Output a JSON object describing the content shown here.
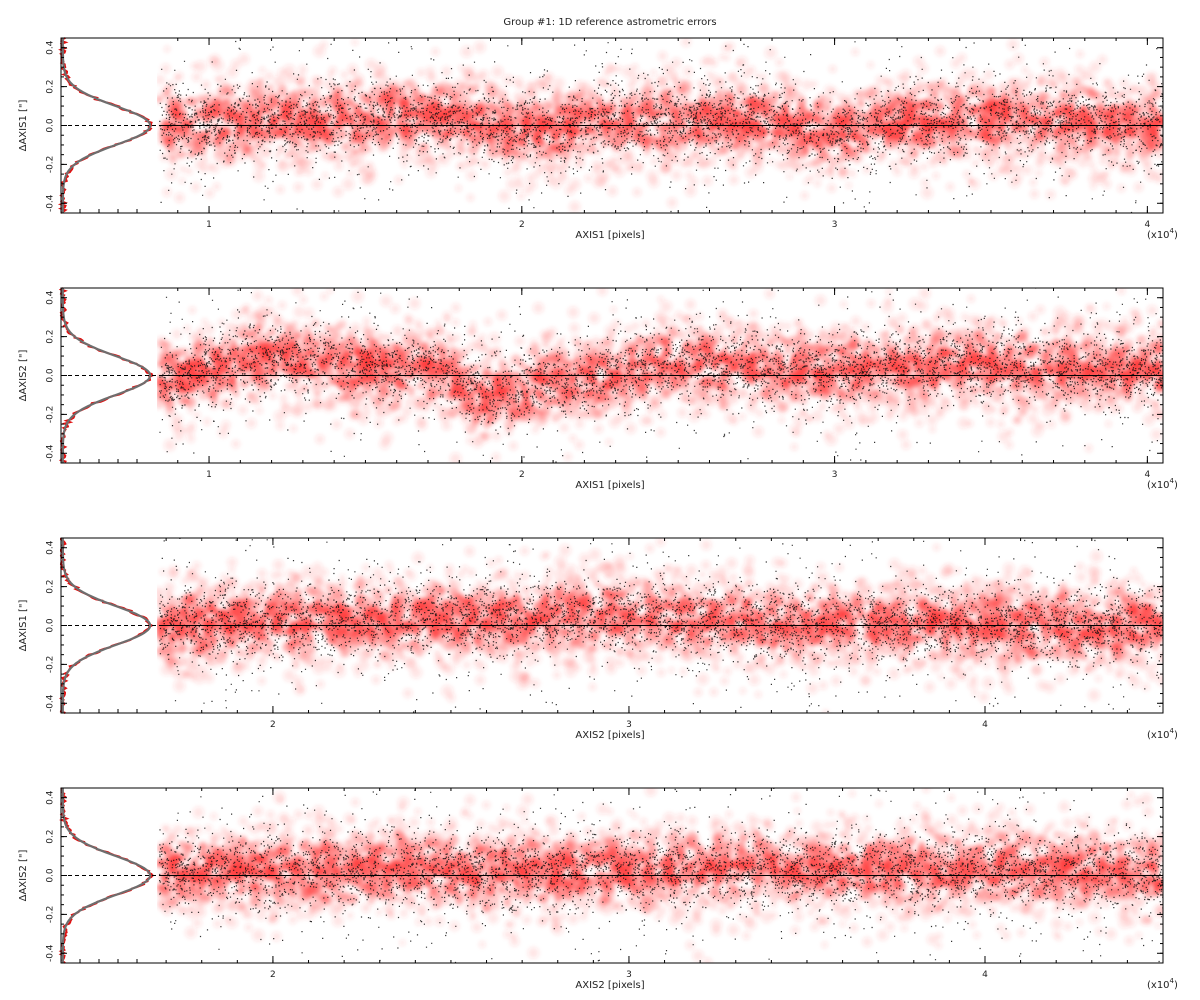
{
  "title": "Group #1: 1D reference astrometric errors",
  "chart_data": [
    {
      "type": "scatter",
      "xlabel": "AXIS1 [pixels]",
      "ylabel": "ΔAXIS1 [\"]",
      "x_multiplier_label": "(x10",
      "x_multiplier_exp": "4",
      "x_multiplier_close": ")",
      "xlim": [
        0.84,
        4.05
      ],
      "ylim": [
        -0.45,
        0.45
      ],
      "xticks": [
        "1",
        "2",
        "3",
        "4"
      ],
      "yticks": [
        "-0.4",
        "-0.2",
        "0.0",
        "0.2",
        "0.4"
      ],
      "data_x_range": [
        0.84,
        4.05
      ],
      "trend_nodes": [
        [
          0.85,
          0.0
        ],
        [
          1.2,
          0.02
        ],
        [
          1.7,
          0.05
        ],
        [
          2.0,
          -0.02
        ],
        [
          2.3,
          0.02
        ],
        [
          2.8,
          0.03
        ],
        [
          3.0,
          -0.04
        ],
        [
          3.2,
          0.01
        ],
        [
          3.6,
          0.04
        ],
        [
          4.05,
          0.0
        ]
      ],
      "core_sigma": 0.09,
      "histogram_sigma": 0.1
    },
    {
      "type": "scatter",
      "xlabel": "AXIS1 [pixels]",
      "ylabel": "ΔAXIS2 [\"]",
      "x_multiplier_label": "(x10",
      "x_multiplier_exp": "4",
      "x_multiplier_close": ")",
      "xlim": [
        0.84,
        4.05
      ],
      "ylim": [
        -0.45,
        0.45
      ],
      "xticks": [
        "1",
        "2",
        "3",
        "4"
      ],
      "yticks": [
        "-0.4",
        "-0.2",
        "0.0",
        "0.2",
        "0.4"
      ],
      "data_x_range": [
        0.84,
        4.05
      ],
      "trend_nodes": [
        [
          0.85,
          -0.02
        ],
        [
          1.2,
          0.1
        ],
        [
          1.5,
          0.04
        ],
        [
          1.7,
          0.04
        ],
        [
          1.9,
          -0.1
        ],
        [
          2.1,
          -0.04
        ],
        [
          2.5,
          0.06
        ],
        [
          3.0,
          0.03
        ],
        [
          3.4,
          0.06
        ],
        [
          3.7,
          0.03
        ],
        [
          4.05,
          0.03
        ]
      ],
      "core_sigma": 0.09,
      "histogram_sigma": 0.1
    },
    {
      "type": "scatter",
      "xlabel": "AXIS2 [pixels]",
      "ylabel": "ΔAXIS1 [\"]",
      "x_multiplier_label": "(x10",
      "x_multiplier_exp": "4",
      "x_multiplier_close": ")",
      "xlim": [
        1.68,
        4.5
      ],
      "ylim": [
        -0.45,
        0.45
      ],
      "xticks": [
        "2",
        "3",
        "4"
      ],
      "yticks": [
        "-0.4",
        "-0.2",
        "0.0",
        "0.2",
        "0.4"
      ],
      "data_x_range": [
        1.68,
        4.5
      ],
      "trend_nodes": [
        [
          1.68,
          0.01
        ],
        [
          2.0,
          0.02
        ],
        [
          2.5,
          0.03
        ],
        [
          3.0,
          0.05
        ],
        [
          3.2,
          0.03
        ],
        [
          3.5,
          0.0
        ],
        [
          3.9,
          0.01
        ],
        [
          4.3,
          0.0
        ],
        [
          4.5,
          0.0
        ]
      ],
      "core_sigma": 0.09,
      "histogram_sigma": 0.1
    },
    {
      "type": "scatter",
      "xlabel": "AXIS2 [pixels]",
      "ylabel": "ΔAXIS2 [\"]",
      "x_multiplier_label": "(x10",
      "x_multiplier_exp": "4",
      "x_multiplier_close": ")",
      "xlim": [
        1.68,
        4.5
      ],
      "ylim": [
        -0.45,
        0.45
      ],
      "xticks": [
        "2",
        "3",
        "4"
      ],
      "yticks": [
        "-0.4",
        "-0.2",
        "0.0",
        "0.2",
        "0.4"
      ],
      "data_x_range": [
        1.68,
        4.5
      ],
      "trend_nodes": [
        [
          1.68,
          0.02
        ],
        [
          2.2,
          0.03
        ],
        [
          2.7,
          0.02
        ],
        [
          3.0,
          0.03
        ],
        [
          3.3,
          0.04
        ],
        [
          3.8,
          0.03
        ],
        [
          4.3,
          0.03
        ],
        [
          4.5,
          0.01
        ]
      ],
      "core_sigma": 0.09,
      "histogram_sigma": 0.1
    }
  ],
  "colors": {
    "density": "#ff3b3b",
    "points": "#111111",
    "histogram_data": "#e01010",
    "histogram_model": "#6e6e6e",
    "axis": "#000000"
  }
}
